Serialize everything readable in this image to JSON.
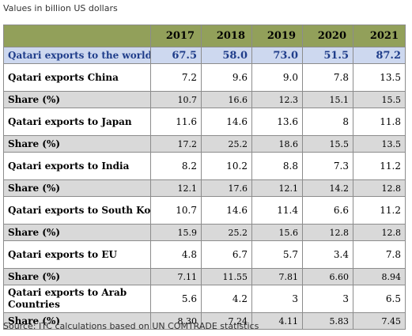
{
  "note": "Values in billion US dollars",
  "source": "Source: ITC calculations based on UN COMTRADE statistics",
  "table": {
    "years": [
      "2017",
      "2018",
      "2019",
      "2020",
      "2021"
    ],
    "world": {
      "label": "Qatari  exports to the world",
      "values": [
        "67.5",
        "58.0",
        "73.0",
        "51.5",
        "87.2"
      ]
    },
    "destinations": [
      {
        "label": "Qatari  exports China",
        "values": [
          "7.2",
          "9.6",
          "9.0",
          "7.8",
          "13.5"
        ],
        "share_label": "Share (%)",
        "share": [
          "10.7",
          "16.6",
          "12.3",
          "15.1",
          "15.5"
        ]
      },
      {
        "label": "Qatari exports to Japan",
        "values": [
          "11.6",
          "14.6",
          "13.6",
          "8",
          "11.8"
        ],
        "share_label": "Share (%)",
        "share": [
          "17.2",
          "25.2",
          "18.6",
          "15.5",
          "13.5"
        ]
      },
      {
        "label": "Qatari  exports to India",
        "values": [
          "8.2",
          "10.2",
          "8.8",
          "7.3",
          "11.2"
        ],
        "share_label": "Share (%)",
        "share": [
          "12.1",
          "17.6",
          "12.1",
          "14.2",
          "12.8"
        ]
      },
      {
        "label": "Qatari exports to South Korea",
        "values": [
          "10.7",
          "14.6",
          "11.4",
          "6.6",
          "11.2"
        ],
        "share_label": "Share (%)",
        "share": [
          "15.9",
          "25.2",
          "15.6",
          "12.8",
          "12.8"
        ]
      },
      {
        "label": "Qatari  exports to EU",
        "values": [
          "4.8",
          "6.7",
          "5.7",
          "3.4",
          "7.8"
        ],
        "share_label": "Share (%)",
        "share": [
          "7.11",
          "11.55",
          "7.81",
          "6.60",
          "8.94"
        ]
      },
      {
        "label": "Qatari  exports to Arab Countries",
        "values": [
          "5.6",
          "4.2",
          "3",
          "3",
          "6.5"
        ],
        "share_label": "Share (%)",
        "share": [
          "8.30",
          "7.24",
          "4.11",
          "5.83",
          "7.45"
        ]
      }
    ]
  },
  "colors": {
    "header_bg": "#92a05a",
    "world_row_bg": "#cdd8ef",
    "world_row_text": "#1f3d8a",
    "share_row_bg": "#d9d9d9"
  }
}
